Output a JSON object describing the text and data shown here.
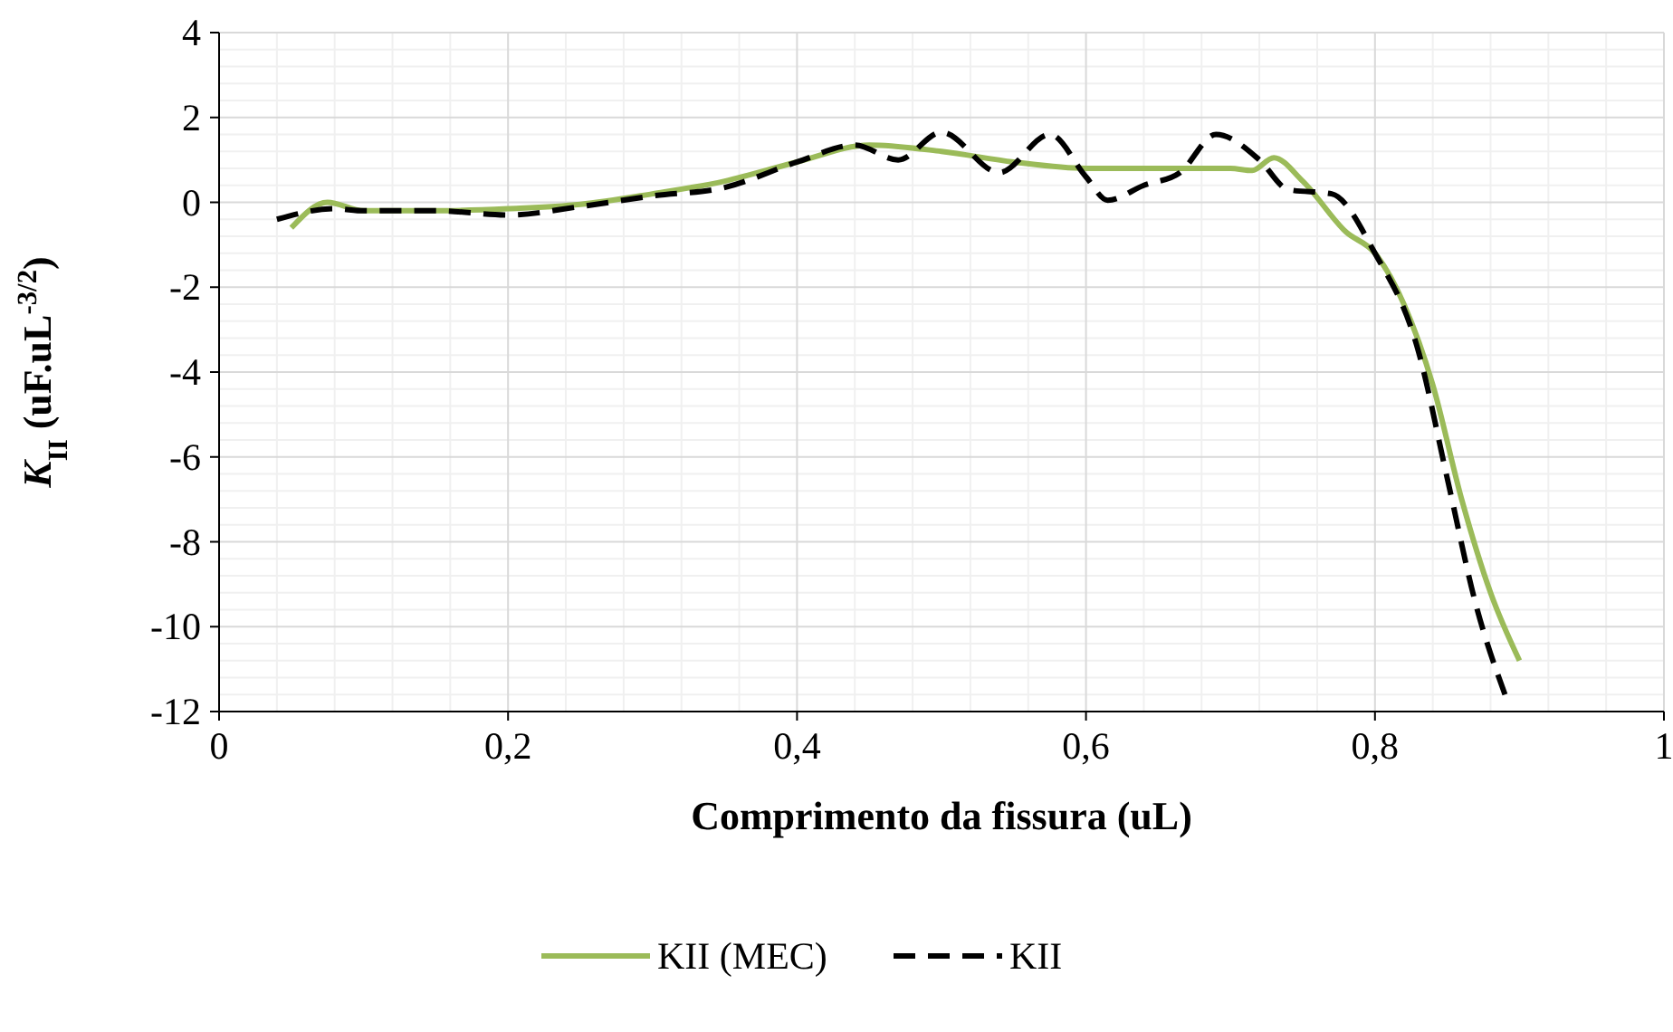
{
  "chart_data": {
    "type": "line",
    "xlabel": "Comprimento da fissura (uL)",
    "ylabel": "K$_{II}$ (uF.uL$^{-3/2}$)",
    "xlim": [
      0,
      1
    ],
    "xticks": [
      0,
      {
        "value": 0.2,
        "label": "0,2"
      },
      {
        "value": 0.4,
        "label": "0,4"
      },
      {
        "value": 0.6,
        "label": "0,6"
      },
      {
        "value": 0.8,
        "label": "0,8"
      },
      1
    ],
    "ylim": [
      -12,
      4
    ],
    "yticks": [
      -12,
      -10,
      -8,
      -6,
      -4,
      -2,
      0,
      2,
      4
    ],
    "grid": true,
    "legend": "bottom",
    "series": [
      {
        "name": "KII (MEC)",
        "color": "#9bbb59",
        "line_style": "solid",
        "x": [
          0.05,
          0.075,
          0.1,
          0.15,
          0.2,
          0.25,
          0.3,
          0.35,
          0.4,
          0.45,
          0.5,
          0.55,
          0.6,
          0.65,
          0.7,
          0.715,
          0.73,
          0.75,
          0.78,
          0.8,
          0.82,
          0.84,
          0.86,
          0.88,
          0.9
        ],
        "values": [
          -0.6,
          0,
          -0.2,
          -0.2,
          -0.15,
          -0.05,
          0.2,
          0.5,
          0.95,
          1.35,
          1.2,
          0.95,
          0.8,
          0.8,
          0.8,
          0.75,
          1.05,
          0.5,
          -0.7,
          -1.2,
          -2.4,
          -4.3,
          -7,
          -9.2,
          -10.8
        ]
      },
      {
        "name": "KII",
        "color": "#000000",
        "line_style": "dashed",
        "x": [
          0.04,
          0.08,
          0.1,
          0.15,
          0.2,
          0.25,
          0.3,
          0.35,
          0.4,
          0.44,
          0.47,
          0.5,
          0.54,
          0.575,
          0.6,
          0.615,
          0.64,
          0.665,
          0.69,
          0.72,
          0.74,
          0.77,
          0.8,
          0.83,
          0.85,
          0.87,
          0.89
        ],
        "values": [
          -0.4,
          -0.15,
          -0.2,
          -0.2,
          -0.3,
          -0.1,
          0.15,
          0.35,
          0.95,
          1.35,
          1.0,
          1.65,
          0.7,
          1.6,
          0.6,
          0.05,
          0.4,
          0.7,
          1.6,
          1.0,
          0.3,
          0.2,
          -1.2,
          -3.5,
          -6.5,
          -9.5,
          -11.6
        ]
      }
    ]
  }
}
